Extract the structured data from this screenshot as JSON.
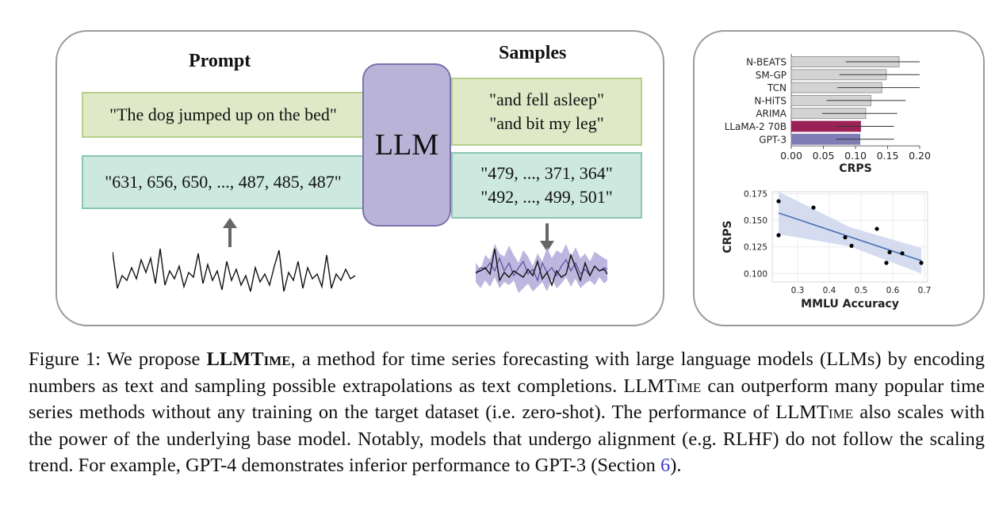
{
  "prompt_heading": "Prompt",
  "samples_heading": "Samples",
  "prompt_text": "\"The dog jumped up on the bed\"",
  "prompt_numbers": "\"631, 656, 650, ..., 487, 485, 487\"",
  "llm_label": "LLM",
  "sample_text": "\"and fell asleep\"\n\"and bit my leg\"",
  "sample_numbers": "\"479, ..., 371, 364\"\n\"492, ..., 499, 501\"",
  "colors": {
    "green_box": "#dfe9c7",
    "teal_box": "#cde8df",
    "llm_block": "#b9b3d8",
    "llama_bar": "#9b2257",
    "gpt3_bar": "#7f7db5",
    "gray_bar": "#d3d3d3",
    "fit_line": "#4a72b0",
    "band": "#ccd3ec"
  },
  "chart_data": [
    {
      "type": "bar",
      "orientation": "horizontal",
      "categories": [
        "N-BEATS",
        "SM-GP",
        "TCN",
        "N-HiTS",
        "ARIMA",
        "LLaMA-2 70B",
        "GPT-3"
      ],
      "values": [
        0.168,
        0.148,
        0.141,
        0.124,
        0.116,
        0.108,
        0.107
      ],
      "error_low": [
        0.085,
        0.075,
        0.072,
        0.055,
        0.048,
        0.07,
        0.07
      ],
      "error_high": [
        0.2,
        0.2,
        0.2,
        0.178,
        0.165,
        0.16,
        0.16
      ],
      "xlabel": "CRPS",
      "xlim": [
        0,
        0.2
      ],
      "xticks": [
        "0.00",
        "0.05",
        "0.10",
        "0.15",
        "0.20"
      ]
    },
    {
      "type": "scatter",
      "xlabel": "MMLU Accuracy",
      "ylabel": "CRPS",
      "xlim": [
        0.22,
        0.71
      ],
      "ylim": [
        0.092,
        0.177
      ],
      "xticks": [
        "0.3",
        "0.4",
        "0.5",
        "0.6",
        "0.7"
      ],
      "yticks": [
        "0.100",
        "0.125",
        "0.150",
        "0.175"
      ],
      "x": [
        0.24,
        0.24,
        0.35,
        0.45,
        0.47,
        0.55,
        0.58,
        0.59,
        0.63,
        0.69
      ],
      "y": [
        0.168,
        0.136,
        0.162,
        0.134,
        0.126,
        0.142,
        0.11,
        0.12,
        0.119,
        0.11
      ],
      "trend_line": {
        "x": [
          0.24,
          0.69
        ],
        "y": [
          0.157,
          0.112
        ]
      },
      "grid": true
    }
  ],
  "caption": {
    "fig_label": "Figure 1: We propose ",
    "name": "LLMTime",
    "part1": ", a method for time series forecasting with large language models (LLMs) by encoding numbers as text and sampling possible extrapolations as text completions. ",
    "name2": "LLMTime",
    "part2": " can outperform many popular time series methods without any training on the target dataset (i.e. zero-shot). The performance of ",
    "name3": "LLMTime",
    "part3": " also scales with the power of the underlying base model. Notably, models that undergo alignment (e.g. RLHF) do not follow the scaling trend. For example, GPT-4 demonstrates inferior performance to GPT-3 (Section ",
    "section_ref": "6",
    "part4": ")."
  }
}
